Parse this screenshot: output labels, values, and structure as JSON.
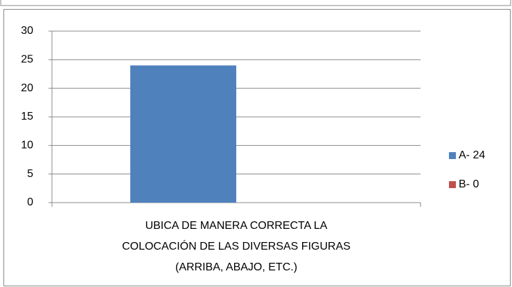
{
  "chart_data": {
    "type": "bar",
    "categories": [
      "UBICA DE MANERA CORRECTA LA COLOCACIÓN DE LAS DIVERSAS FIGURAS (ARRIBA, ABAJO, ETC.)"
    ],
    "series": [
      {
        "name": "A- 24",
        "color": "#4f81bd",
        "values": [
          24
        ]
      },
      {
        "name": "B- 0",
        "color": "#c0504d",
        "values": [
          0
        ]
      }
    ],
    "ylim": [
      0,
      30
    ],
    "yticks": [
      0,
      5,
      10,
      15,
      20,
      25,
      30
    ],
    "grid": true,
    "legend": "right"
  }
}
